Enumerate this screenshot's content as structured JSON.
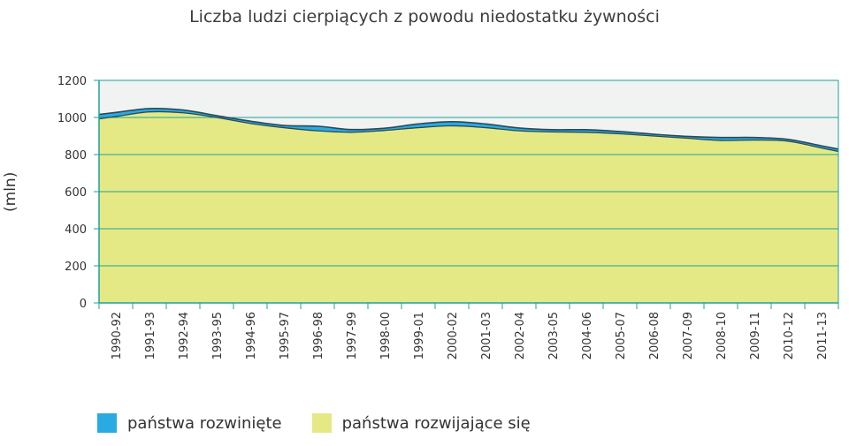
{
  "chart_data": {
    "type": "area",
    "title": "Liczba ludzi cierpiących z powodu niedostatku żywności",
    "ylabel": "(mln)",
    "xlabel": "",
    "ylim": [
      0,
      1200
    ],
    "yticks": [
      0,
      200,
      400,
      600,
      800,
      1000,
      1200
    ],
    "grid": true,
    "stacked": true,
    "legend_position": "bottom-left",
    "categories": [
      "1990-92",
      "1991-93",
      "1992-94",
      "1993-95",
      "1994-96",
      "1995-97",
      "1996-98",
      "1997-99",
      "1998-00",
      "1999-01",
      "2000-02",
      "2001-03",
      "2002-04",
      "2003-05",
      "2004-06",
      "2005-07",
      "2006-08",
      "2007-09",
      "2008-10",
      "2009-11",
      "2010-12",
      "2011-13"
    ],
    "series": [
      {
        "name": "państwa rozwijające się",
        "color": "#e5e985",
        "values": [
          1005,
          1030,
          1025,
          1000,
          968,
          945,
          928,
          920,
          930,
          945,
          955,
          945,
          928,
          922,
          920,
          912,
          900,
          888,
          876,
          878,
          872,
          835
        ]
      },
      {
        "name": "państwa rozwinięte",
        "color": "#29aae2",
        "values": [
          22,
          18,
          15,
          10,
          12,
          12,
          25,
          15,
          12,
          20,
          22,
          20,
          15,
          12,
          14,
          12,
          10,
          10,
          16,
          14,
          10,
          12
        ]
      }
    ]
  }
}
